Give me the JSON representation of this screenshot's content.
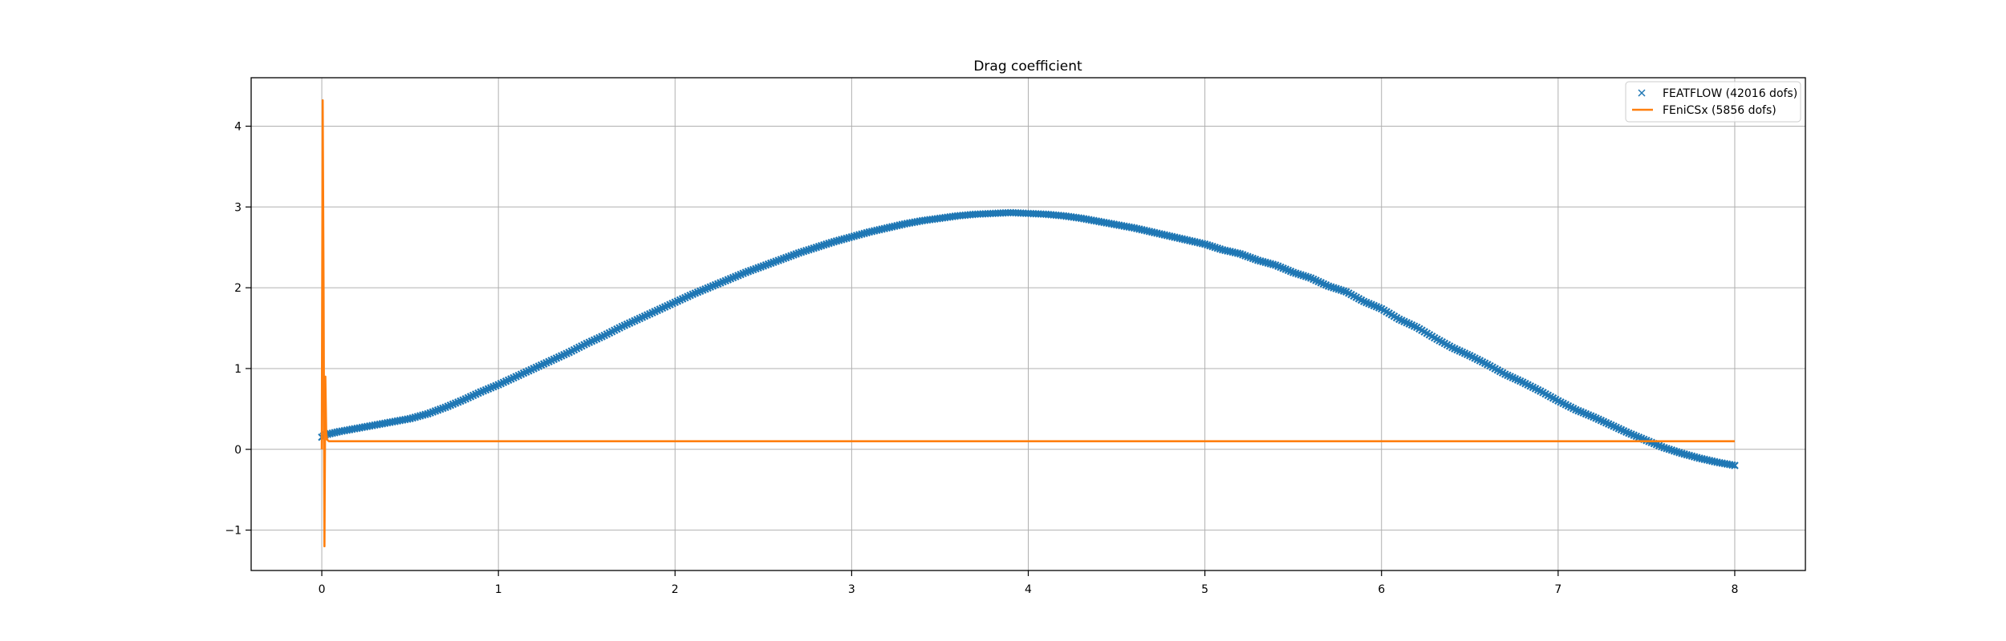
{
  "chart_data": {
    "type": "line",
    "title": "Drag coefficient",
    "xlabel": "",
    "ylabel": "",
    "xlim": [
      -0.4,
      8.4
    ],
    "ylim": [
      -1.5,
      4.6
    ],
    "xticks": [
      0,
      1,
      2,
      3,
      4,
      5,
      6,
      7,
      8
    ],
    "yticks": [
      -1,
      0,
      1,
      2,
      3,
      4
    ],
    "ytick_labels": [
      "−1",
      "0",
      "1",
      "2",
      "3",
      "4"
    ],
    "grid": true,
    "legend_position": "top-right",
    "series": [
      {
        "name": "FEATFLOW (42016 dofs)",
        "marker": "x",
        "color": "#1f77b4",
        "x": [
          0.0,
          0.02,
          0.1,
          0.2,
          0.3,
          0.4,
          0.5,
          0.6,
          0.7,
          0.8,
          0.9,
          1.0,
          1.1,
          1.2,
          1.3,
          1.4,
          1.5,
          1.6,
          1.7,
          1.8,
          1.9,
          2.0,
          2.1,
          2.2,
          2.3,
          2.4,
          2.5,
          2.6,
          2.7,
          2.8,
          2.9,
          3.0,
          3.1,
          3.2,
          3.3,
          3.4,
          3.5,
          3.6,
          3.7,
          3.8,
          3.9,
          4.0,
          4.1,
          4.2,
          4.3,
          4.4,
          4.5,
          4.6,
          4.7,
          4.8,
          4.9,
          5.0,
          5.1,
          5.2,
          5.3,
          5.4,
          5.5,
          5.6,
          5.7,
          5.8,
          5.9,
          6.0,
          6.1,
          6.2,
          6.3,
          6.4,
          6.5,
          6.6,
          6.7,
          6.8,
          6.9,
          7.0,
          7.1,
          7.2,
          7.3,
          7.4,
          7.5,
          7.6,
          7.7,
          7.8,
          7.9,
          8.0
        ],
        "y": [
          0.15,
          0.18,
          0.22,
          0.26,
          0.3,
          0.34,
          0.38,
          0.44,
          0.52,
          0.61,
          0.71,
          0.8,
          0.9,
          1.0,
          1.1,
          1.2,
          1.31,
          1.41,
          1.52,
          1.62,
          1.72,
          1.82,
          1.92,
          2.01,
          2.1,
          2.19,
          2.27,
          2.35,
          2.43,
          2.5,
          2.57,
          2.63,
          2.69,
          2.74,
          2.79,
          2.83,
          2.86,
          2.89,
          2.91,
          2.92,
          2.93,
          2.92,
          2.91,
          2.89,
          2.86,
          2.82,
          2.78,
          2.74,
          2.69,
          2.64,
          2.59,
          2.54,
          2.47,
          2.42,
          2.34,
          2.28,
          2.19,
          2.12,
          2.02,
          1.95,
          1.83,
          1.74,
          1.61,
          1.51,
          1.38,
          1.26,
          1.16,
          1.05,
          0.93,
          0.83,
          0.72,
          0.6,
          0.49,
          0.4,
          0.3,
          0.2,
          0.11,
          0.02,
          -0.05,
          -0.11,
          -0.16,
          -0.2
        ]
      },
      {
        "name": "FEniCSx  (5856 dofs)",
        "marker": "line",
        "color": "#ff7f0e",
        "x": [
          0.0,
          0.005,
          0.01,
          0.015,
          0.02,
          0.025,
          0.03,
          0.04,
          0.06,
          0.1,
          0.5,
          1.0,
          2.0,
          3.0,
          4.0,
          5.0,
          6.0,
          7.0,
          8.0
        ],
        "y": [
          0.0,
          4.32,
          2.0,
          -1.2,
          0.9,
          0.2,
          0.12,
          0.1,
          0.1,
          0.1,
          0.1,
          0.1,
          0.1,
          0.1,
          0.1,
          0.1,
          0.1,
          0.1,
          0.1
        ]
      }
    ]
  }
}
